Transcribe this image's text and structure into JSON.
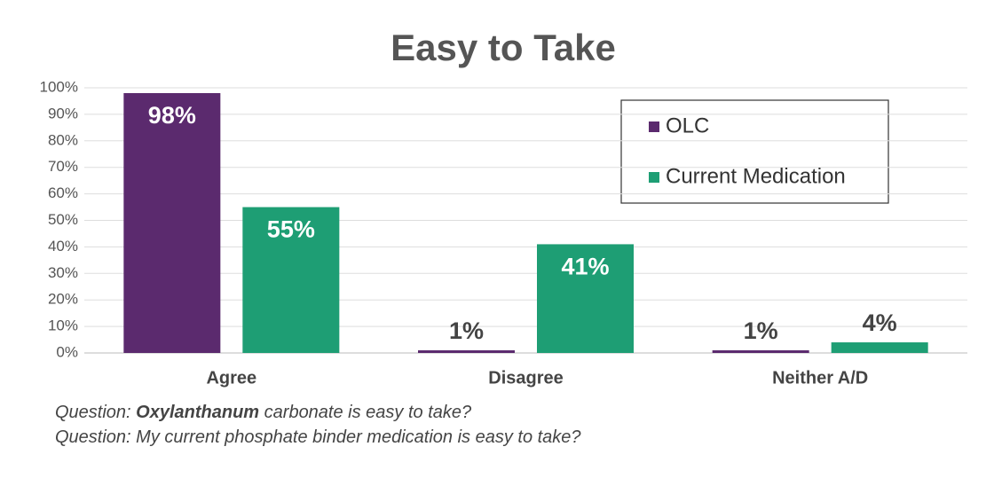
{
  "chart_data": {
    "type": "bar",
    "title": "Easy to Take",
    "categories": [
      "Agree",
      "Disagree",
      "Neither A/D"
    ],
    "series": [
      {
        "name": "OLC",
        "color": "#5b2a6e",
        "values": [
          98,
          1,
          1
        ],
        "value_labels": [
          "98%",
          "1%",
          "1%"
        ]
      },
      {
        "name": "Current Medication",
        "color": "#1e9e74",
        "values": [
          55,
          41,
          4
        ],
        "value_labels": [
          "55%",
          "41%",
          "4%"
        ]
      }
    ],
    "ylim": [
      0,
      100
    ],
    "yticks": [
      {
        "value": 0,
        "label": "0%"
      },
      {
        "value": 10,
        "label": "10%"
      },
      {
        "value": 20,
        "label": "20%"
      },
      {
        "value": 30,
        "label": "30%"
      },
      {
        "value": 40,
        "label": "40%"
      },
      {
        "value": 50,
        "label": "50%"
      },
      {
        "value": 60,
        "label": "60%"
      },
      {
        "value": 70,
        "label": "70%"
      },
      {
        "value": 80,
        "label": "80%"
      },
      {
        "value": 90,
        "label": "90%"
      },
      {
        "value": 100,
        "label": "100%"
      }
    ],
    "grid": true,
    "legend": "upper-right",
    "notes": [
      [
        "Question:",
        "Oxylanthanum",
        "carbonate is easy to take?"
      ],
      [
        "Question: My current phosphate binder medication is easy to take?"
      ]
    ]
  }
}
